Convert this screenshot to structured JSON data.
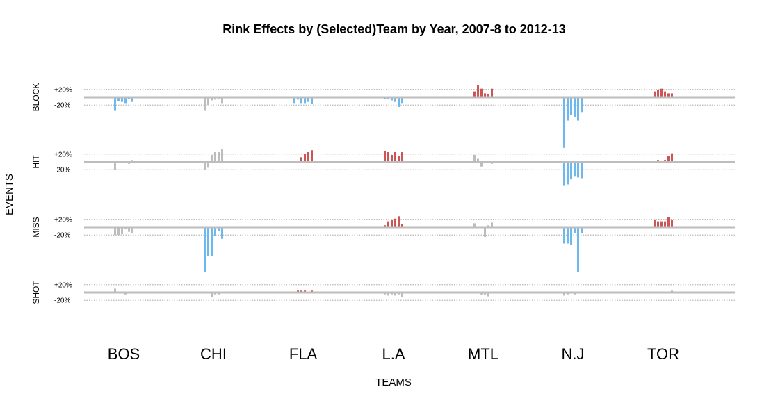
{
  "chart_data": {
    "type": "bar",
    "title": "Rink Effects by (Selected)Team by Year, 2007-8 to 2012-13",
    "xlabel": "TEAMS",
    "ylabel": "EVENTS",
    "events": [
      "BLOCK",
      "HIT",
      "MISS",
      "SHOT"
    ],
    "teams": [
      "BOS",
      "CHI",
      "FLA",
      "L.A",
      "MTL",
      "N.J",
      "TOR"
    ],
    "reference_tick_labels": [
      "+20%",
      "-20%"
    ],
    "unit": "percent",
    "grid": "dotted reference lines at +20% and -20%",
    "colors": {
      "positive": "#cd5555",
      "negative": "#6db8ef",
      "neutral": "#bdbdbd",
      "baseline": "#bdbdbd"
    },
    "series": [
      {
        "event": "BLOCK",
        "teams": [
          {
            "team": "BOS",
            "status": "negative",
            "values": [
              -35,
              -10,
              -12,
              -15,
              -5,
              -12
            ]
          },
          {
            "team": "CHI",
            "status": "neutral",
            "values": [
              -35,
              -20,
              -8,
              -6,
              -5,
              -15
            ]
          },
          {
            "team": "FLA",
            "status": "negative",
            "values": [
              -15,
              -6,
              -15,
              -15,
              -12,
              -18
            ]
          },
          {
            "team": "L.A",
            "status": "negative",
            "values": [
              -5,
              -5,
              -8,
              -12,
              -25,
              -15
            ]
          },
          {
            "team": "MTL",
            "status": "positive",
            "values": [
              15,
              32,
              22,
              10,
              8,
              22
            ]
          },
          {
            "team": "N.J",
            "status": "negative",
            "values": [
              -130,
              -60,
              -45,
              -50,
              -60,
              -38
            ]
          },
          {
            "team": "TOR",
            "status": "positive",
            "values": [
              15,
              18,
              22,
              15,
              10,
              10
            ]
          }
        ]
      },
      {
        "event": "HIT",
        "teams": [
          {
            "team": "BOS",
            "status": "neutral",
            "values": [
              -20,
              -2,
              -2,
              -2,
              -5,
              5
            ]
          },
          {
            "team": "CHI",
            "status": "neutral",
            "values": [
              -20,
              -15,
              18,
              25,
              25,
              32
            ]
          },
          {
            "team": "FLA",
            "status": "positive",
            "values": [
              2,
              2,
              12,
              20,
              25,
              30
            ]
          },
          {
            "team": "L.A",
            "status": "positive",
            "values": [
              28,
              25,
              18,
              25,
              15,
              25
            ]
          },
          {
            "team": "MTL",
            "status": "neutral",
            "values": [
              18,
              8,
              -12,
              -2,
              -2,
              -5
            ]
          },
          {
            "team": "N.J",
            "status": "negative",
            "values": [
              -60,
              -58,
              -45,
              -38,
              -40,
              -42
            ]
          },
          {
            "team": "TOR",
            "status": "positive",
            "values": [
              2,
              5,
              2,
              5,
              15,
              22
            ]
          }
        ]
      },
      {
        "event": "MISS",
        "teams": [
          {
            "team": "BOS",
            "status": "neutral",
            "values": [
              -20,
              -20,
              -18,
              -5,
              -12,
              -15
            ]
          },
          {
            "team": "CHI",
            "status": "negative",
            "values": [
              -115,
              -75,
              -75,
              -22,
              -10,
              -30
            ]
          },
          {
            "team": "FLA",
            "status": "neutral",
            "values": [
              0,
              0,
              0,
              0,
              0,
              0
            ]
          },
          {
            "team": "L.A",
            "status": "positive",
            "values": [
              5,
              15,
              20,
              22,
              28,
              8
            ]
          },
          {
            "team": "MTL",
            "status": "neutral",
            "values": [
              10,
              2,
              -2,
              -25,
              5,
              12
            ]
          },
          {
            "team": "N.J",
            "status": "negative",
            "values": [
              -42,
              -42,
              -45,
              -15,
              -115,
              -15
            ]
          },
          {
            "team": "TOR",
            "status": "positive",
            "values": [
              20,
              15,
              15,
              15,
              25,
              18
            ]
          }
        ]
      },
      {
        "event": "SHOT",
        "teams": [
          {
            "team": "BOS",
            "status": "neutral",
            "values": [
              10,
              2,
              2,
              -5,
              2,
              2
            ]
          },
          {
            "team": "CHI",
            "status": "neutral",
            "values": [
              0,
              0,
              -12,
              -5,
              -5,
              0
            ]
          },
          {
            "team": "FLA",
            "status": "positive",
            "values": [
              2,
              5,
              5,
              5,
              2,
              5
            ]
          },
          {
            "team": "L.A",
            "status": "neutral",
            "values": [
              -5,
              -8,
              -5,
              -8,
              -5,
              -12
            ]
          },
          {
            "team": "MTL",
            "status": "neutral",
            "values": [
              2,
              2,
              -5,
              -5,
              -10,
              0
            ]
          },
          {
            "team": "N.J",
            "status": "neutral",
            "values": [
              -8,
              -5,
              -2,
              -5,
              -2,
              0
            ]
          },
          {
            "team": "TOR",
            "status": "neutral",
            "values": [
              2,
              2,
              2,
              2,
              2,
              5
            ]
          }
        ]
      }
    ]
  }
}
